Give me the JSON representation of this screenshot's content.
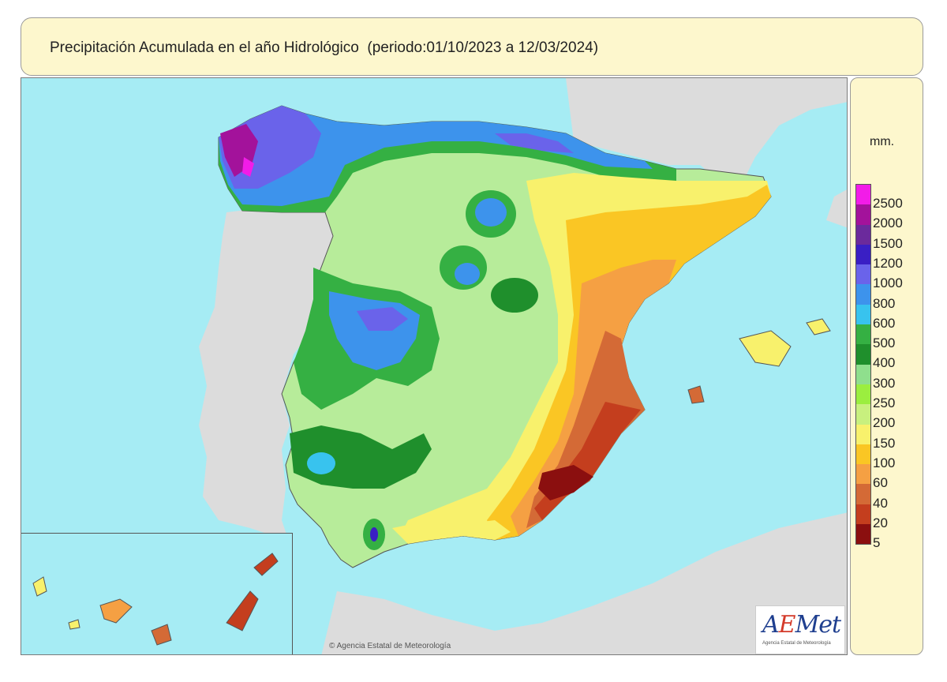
{
  "title": "Precipitación Acumulada en el año Hidrológico  (periodo:01/10/2023 a 12/03/2024)",
  "legend": {
    "unit": "mm.",
    "classes": [
      {
        "label": "2500",
        "color": "#f21ce8"
      },
      {
        "label": "2000",
        "color": "#a3129b"
      },
      {
        "label": "1500",
        "color": "#6b2a9c"
      },
      {
        "label": "1200",
        "color": "#3a1fc4"
      },
      {
        "label": "1000",
        "color": "#6a63ea"
      },
      {
        "label": "800",
        "color": "#3d93ec"
      },
      {
        "label": "600",
        "color": "#38c3ee"
      },
      {
        "label": "500",
        "color": "#35b043"
      },
      {
        "label": "400",
        "color": "#1f8f2c"
      },
      {
        "label": "300",
        "color": "#8fdf8d"
      },
      {
        "label": "250",
        "color": "#9bee3f"
      },
      {
        "label": "200",
        "color": "#c8f07e"
      },
      {
        "label": "150",
        "color": "#f8f16c"
      },
      {
        "label": "100",
        "color": "#fac624"
      },
      {
        "label": "60",
        "color": "#f5a043"
      },
      {
        "label": "40",
        "color": "#d46a36"
      },
      {
        "label": "20",
        "color": "#c43e1e"
      },
      {
        "label": "5",
        "color": "#8b0f0f"
      }
    ]
  },
  "logo": {
    "name": "AEMet",
    "subtitle": "Agencia Estatal de Meteorología"
  },
  "credit": "© Agencia Estatal de Meteorología",
  "colors": {
    "sea": "#a6ecf4",
    "land_outside": "#dcdcdc",
    "panel": "#fdf7cd"
  }
}
